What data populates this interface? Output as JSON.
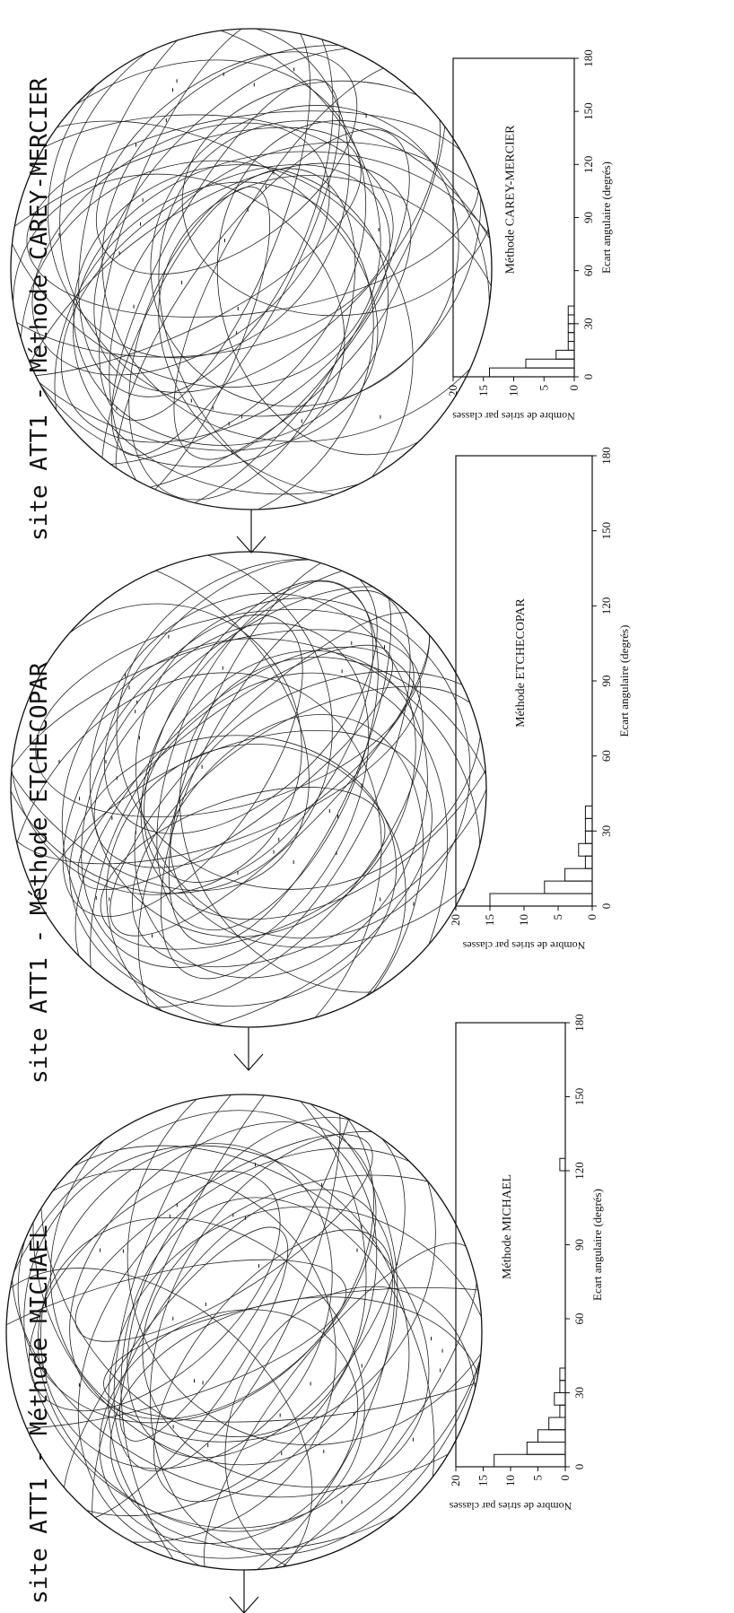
{
  "panels": [
    {
      "title": "site ATT1 - Méthode MICHAEL",
      "hist_label": "Méthode MICHAEL",
      "stereonet": {
        "has_north_arrow": true,
        "great_circles": 32,
        "striae_points": 30
      }
    },
    {
      "title": "site ATT1 - Méthode ETCHECOPAR",
      "hist_label": "Méthode ETCHECOPAR",
      "stereonet": {
        "has_north_arrow": true,
        "great_circles": 32,
        "striae_points": 30
      }
    },
    {
      "title": "site ATT1 - Méthode CAREY-MERCIER",
      "hist_label": "Méthode CAREY-MERCIER",
      "stereonet": {
        "has_north_arrow": true,
        "great_circles": 32,
        "striae_points": 30
      }
    }
  ],
  "chart_data": [
    {
      "type": "bar",
      "title": "Méthode MICHAEL",
      "xlabel": "Ecart angulaire (degrés)",
      "ylabel": "Nombre de stries par classes",
      "bin_width": 5,
      "x_bins_start": [
        0,
        5,
        10,
        15,
        20,
        25,
        30,
        35,
        120
      ],
      "values": [
        13,
        7,
        5,
        3,
        1,
        2,
        1,
        1,
        1
      ],
      "xlim": [
        0,
        180
      ],
      "ylim": [
        0,
        20
      ],
      "xticks": [
        0,
        30,
        60,
        90,
        120,
        150,
        180
      ],
      "yticks": [
        0,
        5,
        10,
        15,
        20
      ],
      "grid": false
    },
    {
      "type": "bar",
      "title": "Méthode ETCHECOPAR",
      "xlabel": "Ecart angulaire (degrés)",
      "ylabel": "Nombre de stries par classes",
      "bin_width": 5,
      "x_bins_start": [
        0,
        5,
        10,
        15,
        20,
        25,
        30,
        35
      ],
      "values": [
        15,
        7,
        4,
        1,
        2,
        1,
        1,
        1
      ],
      "xlim": [
        0,
        180
      ],
      "ylim": [
        0,
        20
      ],
      "xticks": [
        0,
        30,
        60,
        90,
        120,
        150,
        180
      ],
      "yticks": [
        0,
        5,
        10,
        15,
        20
      ],
      "grid": false
    },
    {
      "type": "bar",
      "title": "Méthode CAREY-MERCIER",
      "xlabel": "Ecart angulaire (degrés)",
      "ylabel": "Nombre de stries par classes",
      "bin_width": 5,
      "x_bins_start": [
        0,
        5,
        10,
        15,
        20,
        25,
        30,
        35
      ],
      "values": [
        14,
        8,
        3,
        1,
        1,
        1,
        1,
        1
      ],
      "xlim": [
        0,
        180
      ],
      "ylim": [
        0,
        20
      ],
      "xticks": [
        0,
        30,
        60,
        90,
        120,
        150,
        180
      ],
      "yticks": [
        0,
        5,
        10,
        15,
        20
      ],
      "grid": false
    }
  ]
}
